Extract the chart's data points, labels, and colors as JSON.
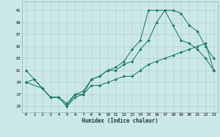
{
  "xlabel": "Humidex (Indice chaleur)",
  "background_color": "#cce8e6",
  "grid_color": "#aacfcc",
  "line_color": "#1a7a6e",
  "xlim": [
    -0.5,
    23.5
  ],
  "ylim": [
    24,
    42.5
  ],
  "xticks": [
    0,
    1,
    2,
    3,
    4,
    5,
    6,
    7,
    8,
    9,
    10,
    11,
    12,
    13,
    14,
    15,
    16,
    17,
    18,
    19,
    20,
    21,
    22,
    23
  ],
  "yticks": [
    25,
    27,
    29,
    31,
    33,
    35,
    37,
    39,
    41
  ],
  "line1_x": [
    0,
    1,
    2,
    3,
    4,
    5,
    6,
    7,
    8,
    9,
    10,
    11,
    12,
    13,
    14,
    15,
    16,
    17,
    18,
    19,
    20,
    21,
    22,
    23
  ],
  "line1_y": [
    31,
    29.5,
    28,
    26.5,
    26.5,
    25,
    27,
    27,
    29.5,
    30,
    31,
    31.5,
    32.5,
    34.5,
    36,
    41,
    41,
    41,
    38.5,
    36,
    35.5,
    34.5,
    33,
    31
  ],
  "line2_x": [
    0,
    2,
    3,
    4,
    5,
    6,
    7,
    8,
    9,
    10,
    11,
    12,
    13,
    14,
    15,
    16,
    17,
    18,
    19,
    20,
    21,
    22,
    23
  ],
  "line2_y": [
    29,
    28,
    26.5,
    26.5,
    25.5,
    27,
    27.5,
    29.5,
    30,
    31,
    31,
    32,
    32.5,
    34.5,
    36,
    39,
    41,
    41,
    40.5,
    38.5,
    37.5,
    35,
    33
  ],
  "line3_x": [
    0,
    1,
    2,
    3,
    4,
    5,
    6,
    7,
    8,
    9,
    10,
    11,
    12,
    13,
    14,
    15,
    16,
    17,
    18,
    19,
    20,
    21,
    22,
    23
  ],
  "line3_y": [
    29,
    29.5,
    28,
    26.5,
    26.5,
    25,
    26.5,
    27,
    28.5,
    28.5,
    29,
    29.5,
    30,
    30,
    31,
    32,
    32.5,
    33,
    33.5,
    34,
    34.5,
    35,
    35.5,
    31
  ]
}
